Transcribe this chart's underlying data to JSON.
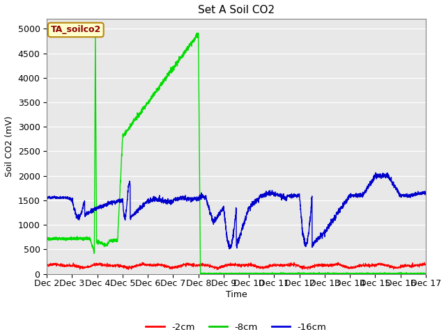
{
  "title": "Set A Soil CO2",
  "ylabel": "Soil CO2 (mV)",
  "xlabel": "Time",
  "label_box_text": "TA_soilco2",
  "ylim": [
    0,
    5200
  ],
  "yticks": [
    0,
    500,
    1000,
    1500,
    2000,
    2500,
    3000,
    3500,
    4000,
    4500,
    5000
  ],
  "legend_labels": [
    "-2cm",
    "-8cm",
    "-16cm"
  ],
  "legend_colors": [
    "#ff0000",
    "#00cc00",
    "#0000dd"
  ],
  "bg_color": "#e8e8e8",
  "line_color_2cm": "#ff0000",
  "line_color_8cm": "#00dd00",
  "line_color_16cm": "#0000cc",
  "x_tick_labels": [
    "Dec 2",
    "Dec 3",
    "Dec 4",
    "Dec 5",
    "Dec 6",
    "Dec 7",
    "Dec 8",
    "Dec 9",
    "Dec 10",
    "Dec 11",
    "Dec 12",
    "Dec 13",
    "Dec 14",
    "Dec 15",
    "Dec 16",
    "Dec 17"
  ],
  "n_points": 3000,
  "figsize": [
    6.4,
    4.8
  ],
  "dpi": 100
}
